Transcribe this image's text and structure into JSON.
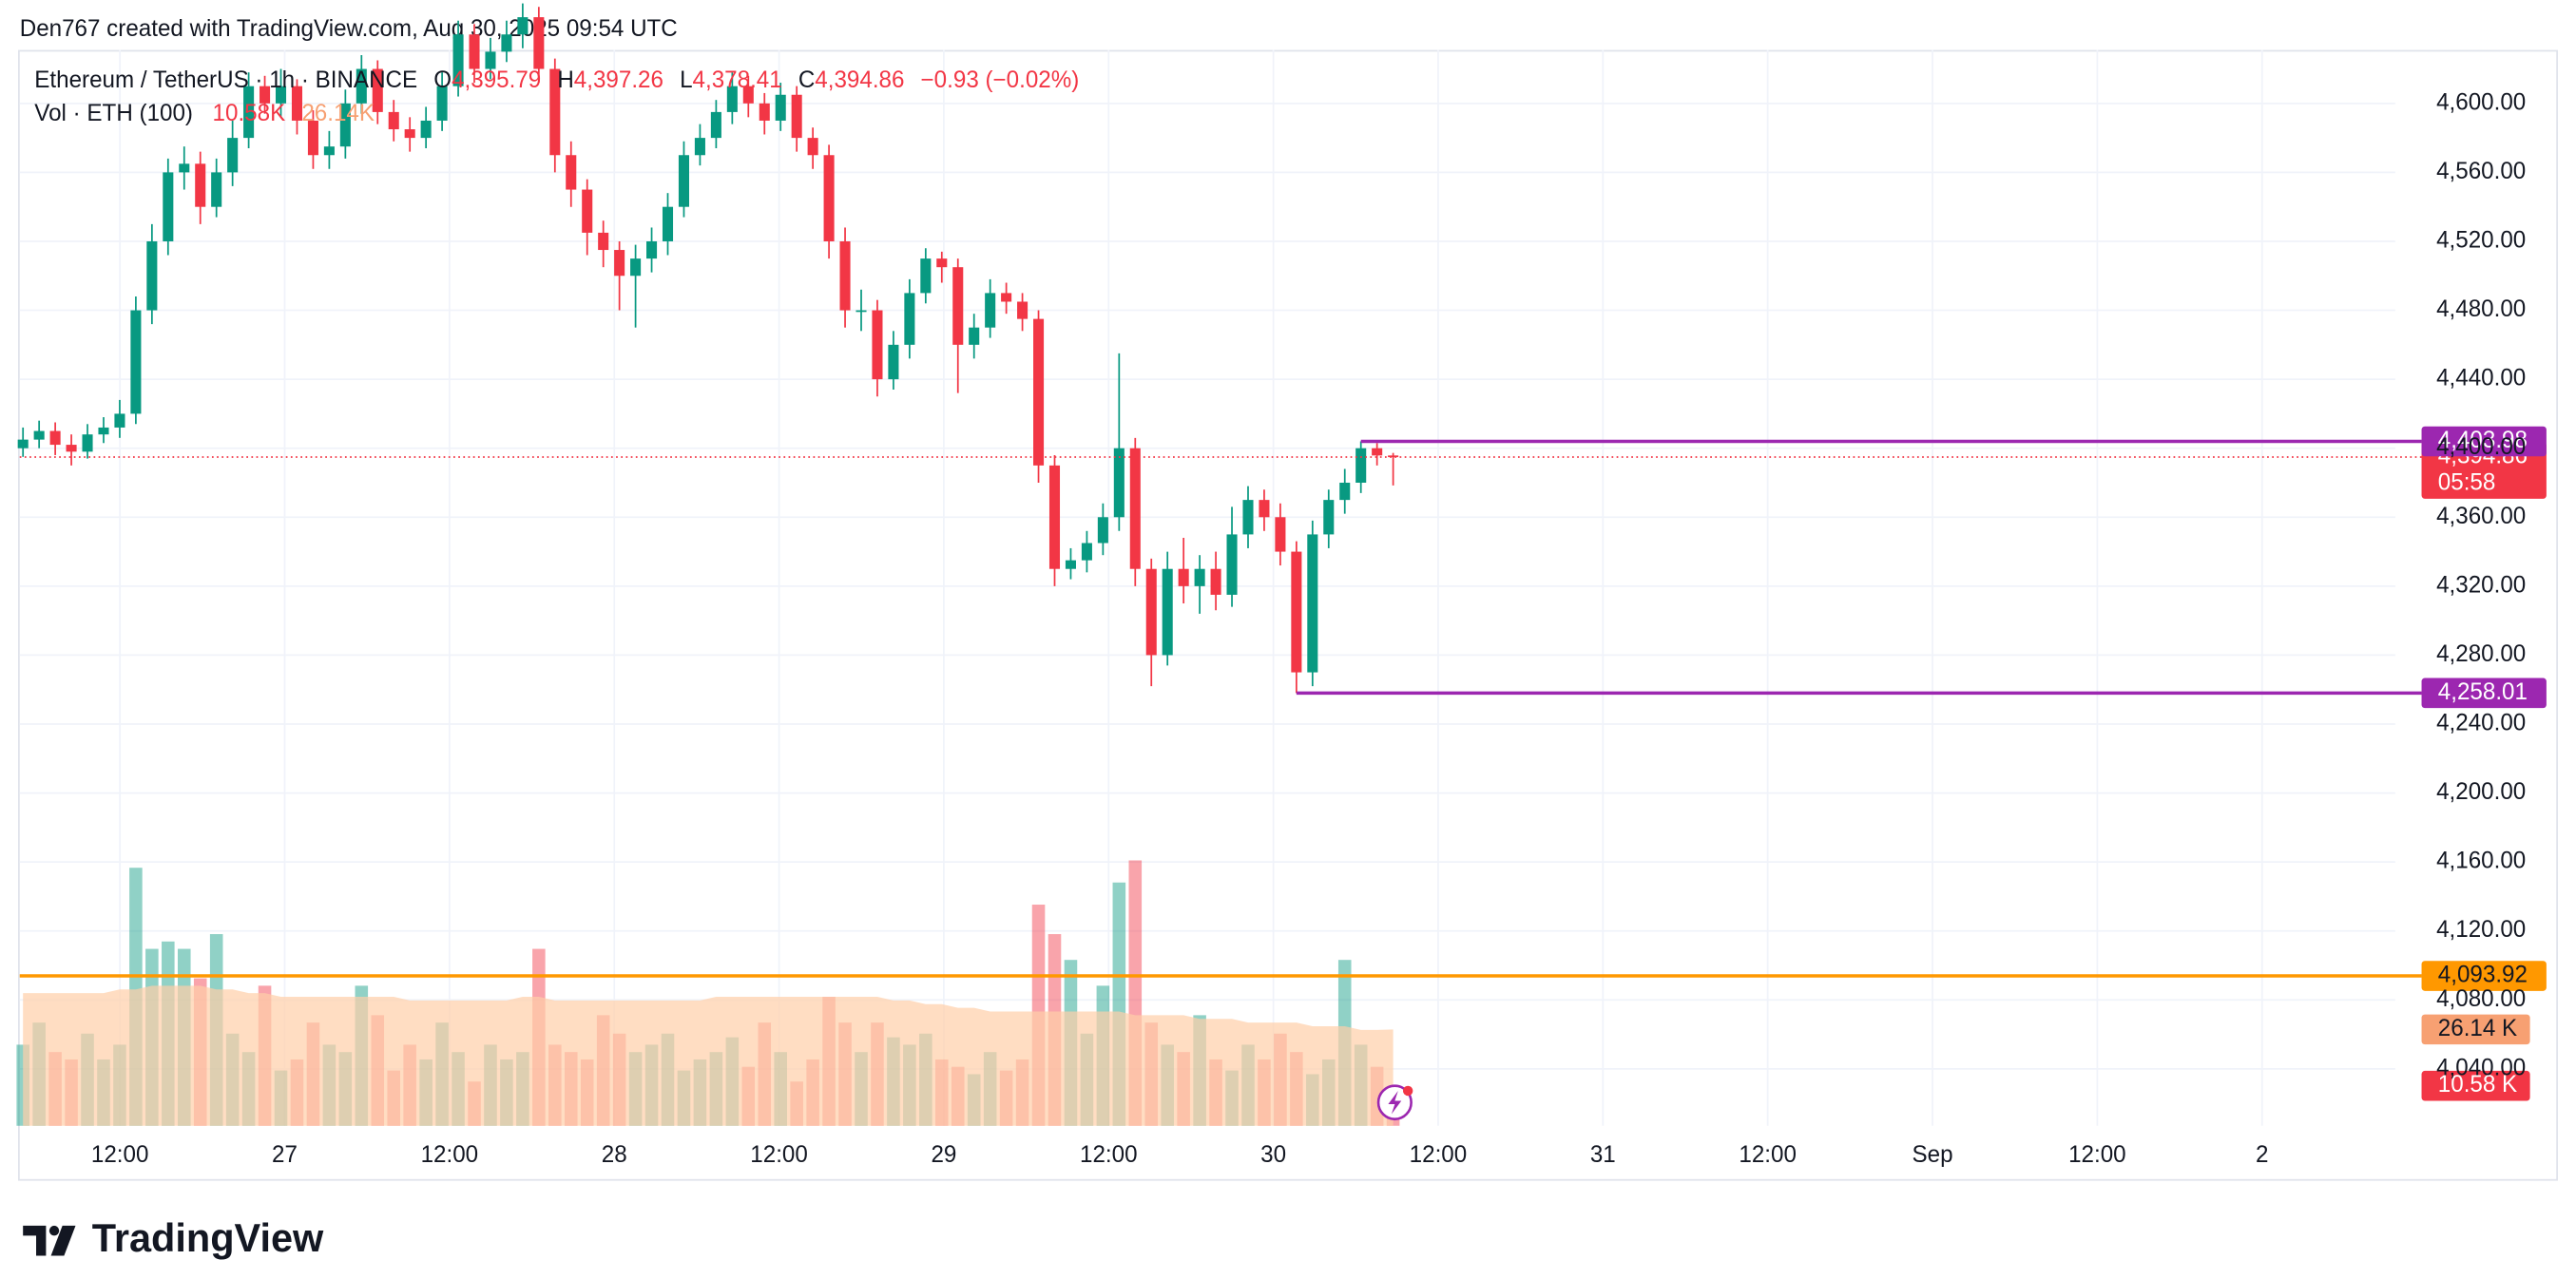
{
  "header": {
    "attribution": "Den767 created with TradingView.com, Aug 30, 2025 09:54 UTC",
    "brand": "TradingView"
  },
  "chart_data": {
    "type": "candlestick",
    "title": "Ethereum / TetherUS · 1h · BINANCE",
    "ohlc_text": [
      "O",
      "4,395.79",
      "H",
      "4,397.26",
      "L",
      "4,378.41",
      "C",
      "4,394.86",
      "−0.93 (−0.02%)"
    ],
    "volume_title": "Vol · ETH (100)",
    "volume_texts": [
      "10.58K",
      "26.14K"
    ],
    "up_color": "#089981",
    "down_color": "#f23645",
    "ohlc": [
      [
        4400,
        4412,
        4395,
        4405
      ],
      [
        4405,
        4416,
        4400,
        4410
      ],
      [
        4410,
        4415,
        4396,
        4402
      ],
      [
        4402,
        4408,
        4390,
        4398
      ],
      [
        4398,
        4414,
        4394,
        4408
      ],
      [
        4408,
        4418,
        4403,
        4412
      ],
      [
        4412,
        4428,
        4406,
        4420
      ],
      [
        4420,
        4488,
        4414,
        4480
      ],
      [
        4480,
        4530,
        4472,
        4520
      ],
      [
        4520,
        4568,
        4512,
        4560
      ],
      [
        4560,
        4575,
        4550,
        4565
      ],
      [
        4565,
        4572,
        4530,
        4540
      ],
      [
        4540,
        4568,
        4534,
        4560
      ],
      [
        4560,
        4590,
        4552,
        4580
      ],
      [
        4580,
        4618,
        4574,
        4610
      ],
      [
        4610,
        4616,
        4594,
        4600
      ],
      [
        4600,
        4620,
        4592,
        4610
      ],
      [
        4610,
        4614,
        4582,
        4590
      ],
      [
        4590,
        4596,
        4562,
        4570
      ],
      [
        4570,
        4584,
        4562,
        4575
      ],
      [
        4575,
        4608,
        4568,
        4600
      ],
      [
        4600,
        4628,
        4594,
        4620
      ],
      [
        4620,
        4625,
        4588,
        4595
      ],
      [
        4595,
        4602,
        4578,
        4585
      ],
      [
        4585,
        4592,
        4572,
        4580
      ],
      [
        4580,
        4598,
        4574,
        4590
      ],
      [
        4590,
        4618,
        4584,
        4610
      ],
      [
        4610,
        4648,
        4604,
        4640
      ],
      [
        4640,
        4646,
        4612,
        4620
      ],
      [
        4620,
        4638,
        4614,
        4630
      ],
      [
        4630,
        4648,
        4624,
        4640
      ],
      [
        4640,
        4658,
        4632,
        4650
      ],
      [
        4650,
        4656,
        4612,
        4620
      ],
      [
        4620,
        4626,
        4560,
        4570
      ],
      [
        4570,
        4578,
        4540,
        4550
      ],
      [
        4550,
        4556,
        4512,
        4525
      ],
      [
        4525,
        4532,
        4505,
        4515
      ],
      [
        4515,
        4520,
        4480,
        4500
      ],
      [
        4500,
        4518,
        4470,
        4510
      ],
      [
        4510,
        4528,
        4502,
        4520
      ],
      [
        4520,
        4548,
        4512,
        4540
      ],
      [
        4540,
        4578,
        4534,
        4570
      ],
      [
        4570,
        4588,
        4564,
        4580
      ],
      [
        4580,
        4602,
        4574,
        4595
      ],
      [
        4595,
        4618,
        4588,
        4610
      ],
      [
        4610,
        4616,
        4592,
        4600
      ],
      [
        4600,
        4606,
        4582,
        4590
      ],
      [
        4590,
        4612,
        4584,
        4605
      ],
      [
        4605,
        4610,
        4572,
        4580
      ],
      [
        4580,
        4586,
        4562,
        4570
      ],
      [
        4570,
        4576,
        4510,
        4520
      ],
      [
        4520,
        4528,
        4470,
        4480
      ],
      [
        4480,
        4492,
        4468,
        4480
      ],
      [
        4480,
        4486,
        4430,
        4440
      ],
      [
        4440,
        4468,
        4434,
        4460
      ],
      [
        4460,
        4498,
        4452,
        4490
      ],
      [
        4490,
        4516,
        4484,
        4510
      ],
      [
        4510,
        4514,
        4496,
        4505
      ],
      [
        4505,
        4510,
        4432,
        4460
      ],
      [
        4460,
        4478,
        4452,
        4470
      ],
      [
        4470,
        4498,
        4464,
        4490
      ],
      [
        4490,
        4496,
        4478,
        4485
      ],
      [
        4485,
        4490,
        4468,
        4475
      ],
      [
        4475,
        4480,
        4380,
        4390
      ],
      [
        4390,
        4396,
        4320,
        4330
      ],
      [
        4330,
        4342,
        4324,
        4335
      ],
      [
        4335,
        4352,
        4328,
        4345
      ],
      [
        4345,
        4368,
        4338,
        4360
      ],
      [
        4360,
        4455,
        4352,
        4400
      ],
      [
        4400,
        4406,
        4320,
        4330
      ],
      [
        4330,
        4336,
        4262,
        4280
      ],
      [
        4280,
        4340,
        4274,
        4330
      ],
      [
        4330,
        4348,
        4310,
        4320
      ],
      [
        4320,
        4338,
        4304,
        4330
      ],
      [
        4330,
        4340,
        4306,
        4315
      ],
      [
        4315,
        4366,
        4308,
        4350
      ],
      [
        4350,
        4378,
        4342,
        4370
      ],
      [
        4370,
        4376,
        4352,
        4360
      ],
      [
        4360,
        4368,
        4332,
        4340
      ],
      [
        4340,
        4346,
        4258.01,
        4270
      ],
      [
        4270,
        4358,
        4262,
        4350
      ],
      [
        4350,
        4376,
        4342,
        4370
      ],
      [
        4370,
        4388,
        4362,
        4380
      ],
      [
        4380,
        4403.98,
        4374,
        4400
      ],
      [
        4400,
        4403,
        4390,
        4395.79
      ],
      [
        4395.79,
        4397.26,
        4378.41,
        4394.86
      ]
    ],
    "volume": {
      "ylim": [
        0,
        75
      ],
      "ma_color": "#ffcfa8",
      "values": [
        22,
        28,
        20,
        18,
        25,
        18,
        22,
        70,
        48,
        50,
        48,
        40,
        52,
        25,
        20,
        38,
        15,
        18,
        28,
        22,
        20,
        38,
        30,
        15,
        22,
        18,
        28,
        20,
        12,
        22,
        18,
        20,
        48,
        22,
        20,
        18,
        30,
        25,
        20,
        22,
        25,
        15,
        18,
        20,
        24,
        16,
        28,
        20,
        12,
        18,
        35,
        28,
        20,
        28,
        24,
        22,
        25,
        18,
        16,
        14,
        20,
        15,
        18,
        60,
        52,
        45,
        25,
        38,
        66,
        72,
        28,
        22,
        20,
        30,
        18,
        15,
        22,
        18,
        25,
        20,
        14,
        18,
        45,
        22,
        16,
        10.58
      ],
      "ma": [
        36,
        36,
        36,
        36,
        36,
        36,
        37,
        37,
        38,
        38,
        38,
        38,
        37,
        37,
        36,
        36,
        35,
        35,
        35,
        35,
        35,
        35,
        35,
        35,
        34,
        34,
        34,
        34,
        34,
        34,
        34,
        35,
        35,
        34,
        34,
        34,
        34,
        34,
        34,
        34,
        34,
        34,
        34,
        35,
        35,
        35,
        35,
        35,
        35,
        35,
        35,
        35,
        35,
        35,
        34,
        34,
        33,
        33,
        32,
        32,
        31,
        31,
        31,
        31,
        31,
        31,
        31,
        31,
        31,
        30,
        30,
        30,
        30,
        29,
        29,
        29,
        28,
        28,
        28,
        28,
        27,
        27,
        27,
        26,
        26,
        26.14
      ],
      "ma_label": "26.14 K",
      "last_label": "10.58 K"
    },
    "ylim": [
      4007,
      4631
    ],
    "yticks": [
      {
        "value": 4040,
        "label": "4,040.00"
      },
      {
        "value": 4080,
        "label": "4,080.00"
      },
      {
        "value": 4120,
        "label": "4,120.00"
      },
      {
        "value": 4160,
        "label": "4,160.00"
      },
      {
        "value": 4200,
        "label": "4,200.00"
      },
      {
        "value": 4240,
        "label": "4,240.00"
      },
      {
        "value": 4280,
        "label": "4,280.00"
      },
      {
        "value": 4320,
        "label": "4,320.00"
      },
      {
        "value": 4360,
        "label": "4,360.00"
      },
      {
        "value": 4400,
        "label": "4,400.00"
      },
      {
        "value": 4440,
        "label": "4,440.00"
      },
      {
        "value": 4480,
        "label": "4,480.00"
      },
      {
        "value": 4520,
        "label": "4,520.00"
      },
      {
        "value": 4560,
        "label": "4,560.00"
      },
      {
        "value": 4600,
        "label": "4,600.00"
      }
    ],
    "x_labels": [
      "12:00",
      "27",
      "12:00",
      "28",
      "12:00",
      "29",
      "12:00",
      "30",
      "12:00",
      "31",
      "12:00",
      "Sep",
      "12:00",
      "2"
    ],
    "levels": [
      {
        "value": 4403.98,
        "label": "4,403.98",
        "color": "#9c27b0",
        "from": "high"
      },
      {
        "value": 4258.01,
        "label": "4,258.01",
        "color": "#9c27b0",
        "from": "low"
      },
      {
        "value": 4093.92,
        "label": "4,093.92",
        "color": "#ff9800"
      }
    ],
    "last_price": {
      "value": 4394.86,
      "label": "4,394.86",
      "countdown": "05:58",
      "color": "#f23645"
    }
  }
}
